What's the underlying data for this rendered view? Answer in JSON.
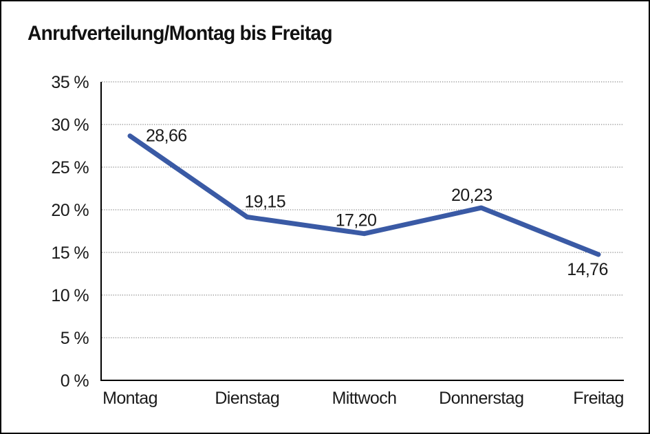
{
  "chart_data": {
    "type": "line",
    "title": "Anrufverteilung/Montag bis Freitag",
    "categories": [
      "Montag",
      "Dienstag",
      "Mittwoch",
      "Donnerstag",
      "Freitag"
    ],
    "values": [
      28.66,
      19.15,
      17.2,
      20.23,
      14.76
    ],
    "point_labels": [
      "28,66",
      "19,15",
      "17,20",
      "20,23",
      "14,76"
    ],
    "y_ticks": [
      {
        "value": 35,
        "label": "35 %"
      },
      {
        "value": 30,
        "label": "30 %"
      },
      {
        "value": 25,
        "label": "25 %"
      },
      {
        "value": 20,
        "label": "20 %"
      },
      {
        "value": 15,
        "label": "15 %"
      },
      {
        "value": 10,
        "label": "10 %"
      },
      {
        "value": 5,
        "label": "5 %"
      },
      {
        "value": 0,
        "label": "0 %"
      }
    ],
    "ylim": [
      0,
      35
    ],
    "unit": "%",
    "line_color": "#3A5AA5",
    "grid": "horizontal-dotted",
    "legend": "none"
  }
}
